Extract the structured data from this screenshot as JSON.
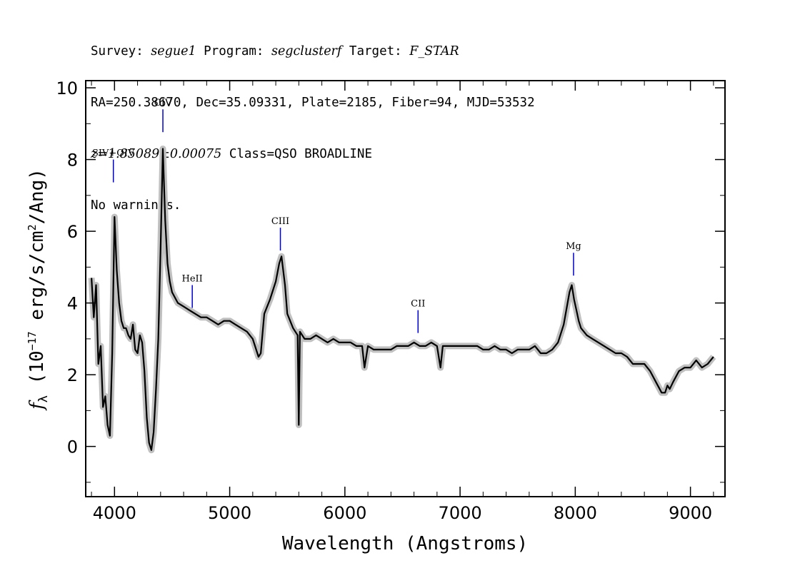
{
  "header": {
    "line1": {
      "survey_label": "Survey: ",
      "survey": "segue1",
      "program_label": " Program: ",
      "program": "segclusterf",
      "target_label": " Target: ",
      "target": "F_STAR"
    },
    "line2": "RA=250.38670, Dec=35.09331, Plate=2185, Fiber=94, MJD=53532",
    "line3": {
      "redshift": "z=1.85089±0.00075",
      "class_text": " Class=QSO BROADLINE"
    },
    "line4": "No warnings."
  },
  "chart_data": {
    "type": "line",
    "xlabel": "Wavelength (Angstroms)",
    "ylabel": "f_λ (10^-17 erg/s/cm^2/Ang)",
    "ylabel_parts": {
      "f": "f",
      "sub": "λ",
      "pre": " (10",
      "exp": "−17",
      "mid": " erg/s/cm",
      "exp2": "2",
      "post": "/Ang)"
    },
    "xlim": [
      3750,
      9300
    ],
    "ylim": [
      -1.4,
      10.2
    ],
    "x_ticks": [
      4000,
      5000,
      6000,
      7000,
      8000,
      9000
    ],
    "y_ticks": [
      0,
      2,
      4,
      6,
      8,
      10
    ],
    "grid": false,
    "colors": {
      "flux": "#000000",
      "error_band": "#c0c0c0",
      "line_markers": "#0000cc"
    },
    "series": [
      {
        "x": [
          3800,
          3820,
          3840,
          3860,
          3880,
          3900,
          3920,
          3940,
          3960,
          3980,
          4000,
          4020,
          4040,
          4060,
          4080,
          4100,
          4120,
          4140,
          4160,
          4180,
          4200,
          4220,
          4240,
          4260,
          4280,
          4300,
          4320,
          4340,
          4360,
          4380,
          4400,
          4420,
          4440,
          4460,
          4480,
          4500,
          4550,
          4600,
          4650,
          4700,
          4750,
          4800,
          4850,
          4900,
          4950,
          5000,
          5050,
          5100,
          5150,
          5200,
          5250,
          5270,
          5300,
          5350,
          5400,
          5430,
          5450,
          5480,
          5500,
          5550,
          5590,
          5600,
          5610,
          5650,
          5700,
          5750,
          5800,
          5850,
          5900,
          5950,
          6000,
          6050,
          6100,
          6150,
          6170,
          6200,
          6250,
          6300,
          6350,
          6400,
          6450,
          6500,
          6550,
          6600,
          6650,
          6700,
          6750,
          6800,
          6830,
          6850,
          6900,
          6950,
          7000,
          7050,
          7100,
          7150,
          7200,
          7250,
          7300,
          7350,
          7400,
          7450,
          7500,
          7550,
          7600,
          7650,
          7700,
          7750,
          7800,
          7850,
          7900,
          7950,
          7970,
          7990,
          8010,
          8030,
          8050,
          8100,
          8150,
          8200,
          8250,
          8300,
          8350,
          8400,
          8450,
          8500,
          8550,
          8600,
          8650,
          8700,
          8750,
          8780,
          8800,
          8820,
          8850,
          8900,
          8950,
          9000,
          9050,
          9100,
          9150,
          9200
        ],
        "y": [
          4.7,
          3.6,
          4.5,
          2.3,
          2.8,
          1.1,
          1.4,
          0.6,
          0.3,
          2.6,
          6.4,
          4.9,
          4.0,
          3.5,
          3.3,
          3.3,
          3.1,
          3.0,
          3.4,
          2.7,
          2.6,
          3.1,
          2.9,
          2.1,
          0.8,
          0.1,
          -0.1,
          0.4,
          1.6,
          3.0,
          5.5,
          8.3,
          6.3,
          5.1,
          4.6,
          4.3,
          4.0,
          3.9,
          3.8,
          3.7,
          3.6,
          3.6,
          3.5,
          3.4,
          3.5,
          3.5,
          3.4,
          3.3,
          3.2,
          3.0,
          2.5,
          2.6,
          3.7,
          4.1,
          4.6,
          5.1,
          5.3,
          4.5,
          3.7,
          3.3,
          3.1,
          0.6,
          3.2,
          3.0,
          3.0,
          3.1,
          3.0,
          2.9,
          3.0,
          2.9,
          2.9,
          2.9,
          2.8,
          2.8,
          2.2,
          2.8,
          2.7,
          2.7,
          2.7,
          2.7,
          2.8,
          2.8,
          2.8,
          2.9,
          2.8,
          2.8,
          2.9,
          2.8,
          2.2,
          2.8,
          2.8,
          2.8,
          2.8,
          2.8,
          2.8,
          2.8,
          2.7,
          2.7,
          2.8,
          2.7,
          2.7,
          2.6,
          2.7,
          2.7,
          2.7,
          2.8,
          2.6,
          2.6,
          2.7,
          2.9,
          3.4,
          4.3,
          4.5,
          4.1,
          3.8,
          3.5,
          3.3,
          3.1,
          3.0,
          2.9,
          2.8,
          2.7,
          2.6,
          2.6,
          2.5,
          2.3,
          2.3,
          2.3,
          2.1,
          1.8,
          1.5,
          1.5,
          1.7,
          1.6,
          1.8,
          2.1,
          2.2,
          2.2,
          2.4,
          2.2,
          2.3,
          2.5
        ]
      }
    ],
    "emission_lines": [
      {
        "label": "SIV+OIV",
        "wavelength": 3990,
        "flux_top": 8.0
      },
      {
        "label": "CIV",
        "wavelength": 4420,
        "flux_top": 9.4
      },
      {
        "label": "HeII",
        "wavelength": 4675,
        "flux_top": 4.5
      },
      {
        "label": "CIII",
        "wavelength": 5440,
        "flux_top": 6.1
      },
      {
        "label": "CII",
        "wavelength": 6635,
        "flux_top": 3.8
      },
      {
        "label": "Mg",
        "wavelength": 7985,
        "flux_top": 5.4
      }
    ]
  }
}
